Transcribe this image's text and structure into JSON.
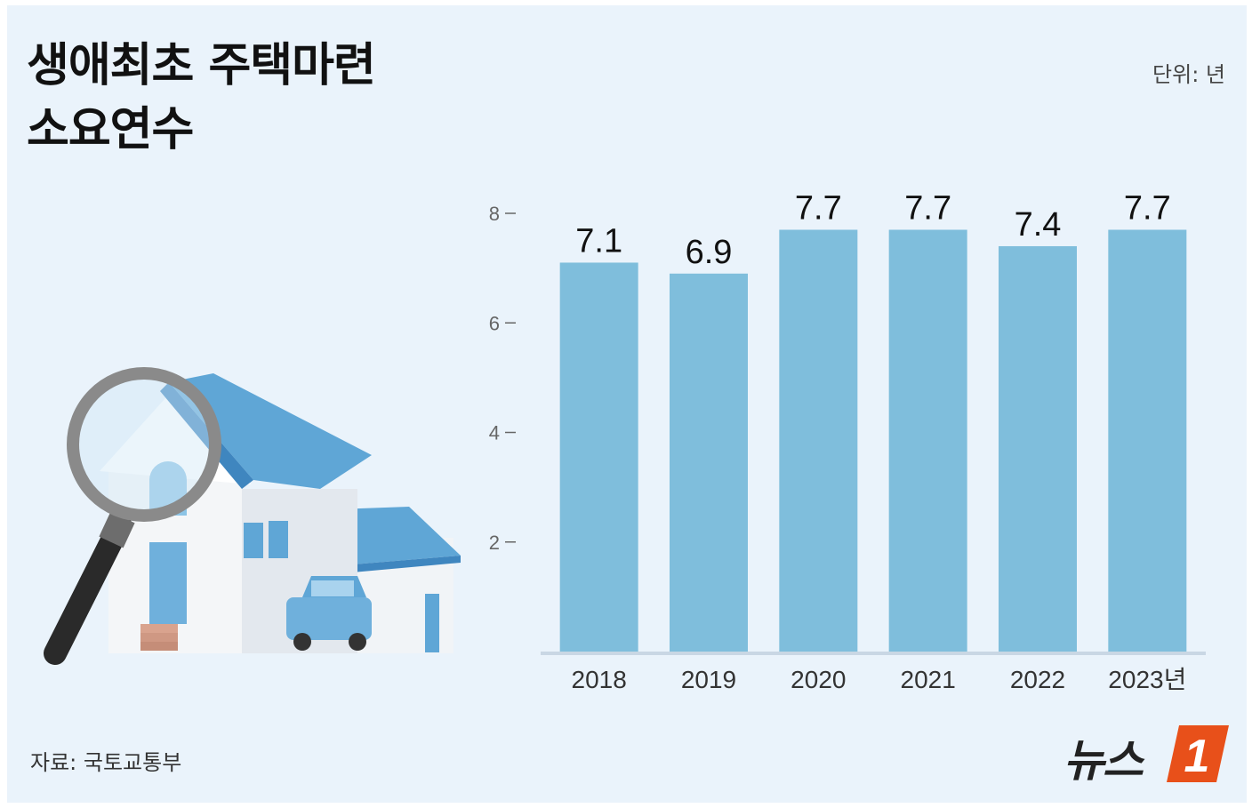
{
  "title": {
    "line1": "생애최초 주택마련",
    "line2": "소요연수"
  },
  "unit": "단위: 년",
  "source": "자료: 국토교통부",
  "logo": {
    "text": "뉴스",
    "badge": "1"
  },
  "colors": {
    "background": "#eaf3fb",
    "bar": "#7fbedc",
    "accent": "#e8501a"
  },
  "chart_data": {
    "type": "bar",
    "categories": [
      "2018",
      "2019",
      "2020",
      "2021",
      "2022",
      "2023년"
    ],
    "values": [
      7.1,
      6.9,
      7.7,
      7.7,
      7.4,
      7.7
    ],
    "value_labels": [
      "7.1",
      "6.9",
      "7.7",
      "7.7",
      "7.4",
      "7.7"
    ],
    "yticks": [
      2,
      4,
      6,
      8
    ],
    "ylim": [
      0,
      8
    ],
    "grid": false,
    "legend": "none"
  }
}
